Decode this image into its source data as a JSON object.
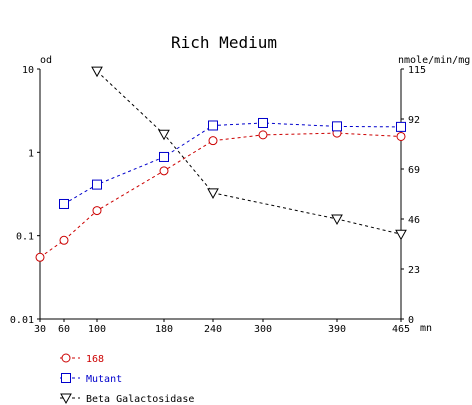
{
  "chart_data": {
    "type": "line",
    "title": "Rich Medium",
    "left_axis": {
      "unit_label": "od",
      "scale": "log",
      "range": [
        0.01,
        10
      ],
      "tick_labels": [
        "0.01",
        "0.1",
        "1",
        "10"
      ]
    },
    "right_axis": {
      "unit_label": "nmole/min/mg",
      "scale": "linear",
      "range": [
        0,
        115
      ],
      "tick_labels": [
        "0",
        "23",
        "46",
        "69",
        "92",
        "115"
      ]
    },
    "x_axis": {
      "unit_label": "mn",
      "range": [
        30,
        465
      ],
      "tick_labels": [
        "30",
        "60",
        "100",
        "180",
        "240",
        "300",
        "390",
        "465"
      ]
    },
    "series": [
      {
        "name": "168",
        "axis": "left",
        "color": "#cc0000",
        "marker": "circle",
        "line": "dashed",
        "points": [
          [
            30,
            0.055
          ],
          [
            60,
            0.088
          ],
          [
            100,
            0.2
          ],
          [
            180,
            0.6
          ],
          [
            240,
            1.38
          ],
          [
            300,
            1.62
          ],
          [
            390,
            1.7
          ],
          [
            465,
            1.55
          ]
        ]
      },
      {
        "name": "Mutant",
        "axis": "left",
        "color": "#0000cc",
        "marker": "square",
        "line": "dashed",
        "points": [
          [
            60,
            0.24
          ],
          [
            100,
            0.41
          ],
          [
            180,
            0.88
          ],
          [
            240,
            2.1
          ],
          [
            300,
            2.25
          ],
          [
            390,
            2.05
          ],
          [
            465,
            2.02
          ]
        ]
      },
      {
        "name": "Beta Galactosidase",
        "axis": "right",
        "color": "#000000",
        "marker": "triangle-down",
        "line": "dashed",
        "points": [
          [
            100,
            114
          ],
          [
            180,
            85
          ],
          [
            240,
            58
          ],
          [
            390,
            46
          ],
          [
            465,
            39
          ]
        ]
      }
    ],
    "legend_placement": "bottom-left"
  }
}
